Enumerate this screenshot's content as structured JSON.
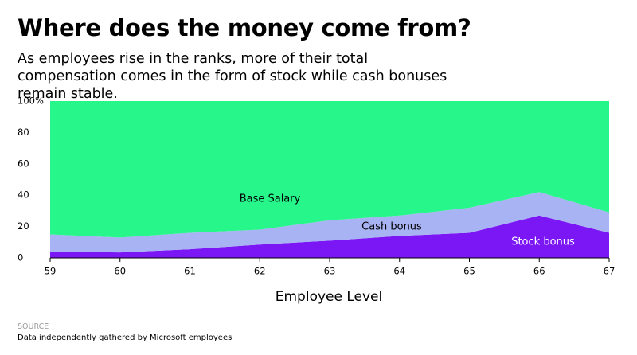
{
  "chart_data": {
    "type": "stacked_area",
    "title": "Where does the money come from?",
    "subtitle": "As employees rise in the ranks, more of their total compensation comes in the form of stock while cash bonuses remain stable.",
    "x_label": "Employee Level",
    "source_label": "SOURCE",
    "source": "Data independently gathered by Microsoft employees",
    "x": [
      59,
      60,
      61,
      62,
      63,
      64,
      65,
      66,
      67
    ],
    "series": [
      {
        "name": "Stock bonus",
        "color": "#7b16f5",
        "values": [
          4,
          3.5,
          5.5,
          8.5,
          11,
          14,
          16,
          27,
          16
        ]
      },
      {
        "name": "Cash bonus",
        "color": "#a7b3f2",
        "values": [
          11,
          9.5,
          10.5,
          9.5,
          13,
          13,
          16,
          15,
          13
        ]
      },
      {
        "name": "Base Salary",
        "color": "#27f68b",
        "values": [
          85,
          87,
          84,
          82,
          76,
          73,
          68,
          58,
          71
        ]
      }
    ],
    "xlim": [
      59,
      67
    ],
    "xticks": [
      59,
      60,
      61,
      62,
      63,
      64,
      65,
      66,
      67
    ],
    "ylim": [
      0,
      100
    ],
    "yticks": [
      0,
      20,
      40,
      60,
      {
        "value": 80,
        "label": "80"
      },
      {
        "value": 100,
        "label": "100%"
      }
    ]
  }
}
